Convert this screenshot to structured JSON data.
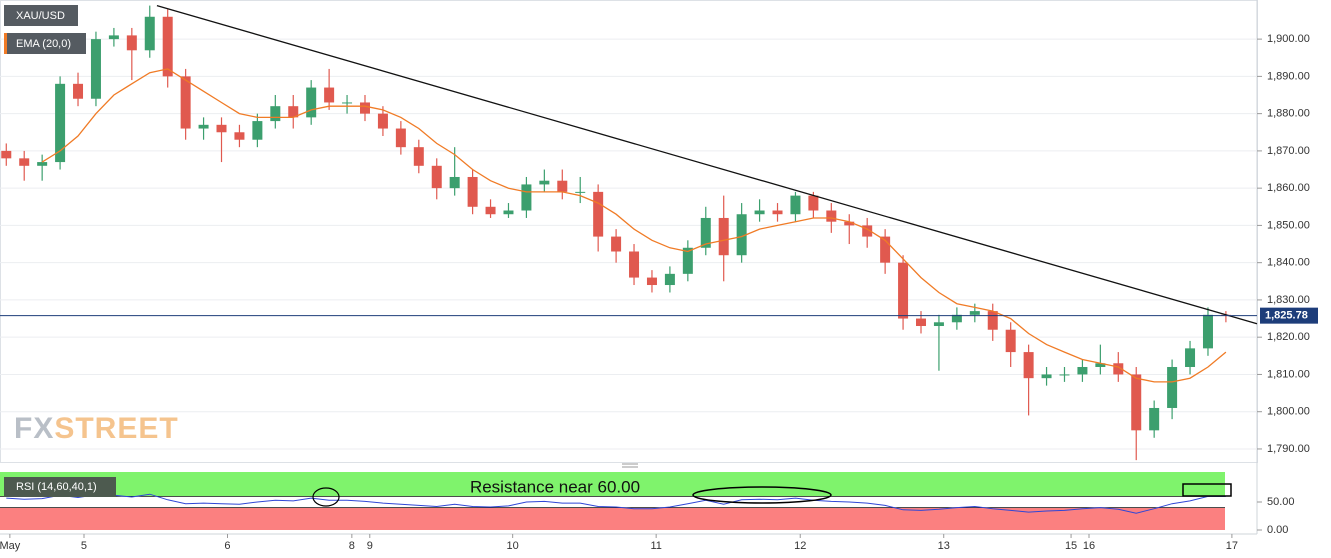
{
  "chart_data": [
    {
      "type": "candlestick",
      "name": "XAU/USD",
      "x": [
        -13,
        -10,
        -7,
        -4,
        -1,
        2,
        5,
        8,
        11,
        14,
        17,
        20,
        23,
        26,
        29,
        32,
        35,
        38,
        41,
        44,
        47,
        50,
        53,
        56,
        59,
        62,
        65,
        68,
        71,
        74,
        77,
        80,
        83,
        86,
        89,
        92,
        95,
        98,
        101,
        104,
        107,
        110,
        113,
        116,
        119,
        122,
        125,
        128,
        131,
        134,
        137,
        140,
        143,
        146,
        149,
        152,
        155,
        158,
        161,
        164,
        167,
        170,
        173,
        176,
        179,
        182,
        185,
        188,
        191
      ],
      "open": [
        1870,
        1868,
        1866,
        1867,
        1888,
        1884,
        1900,
        1901,
        1897,
        1906,
        1890,
        1876,
        1877,
        1875,
        1873,
        1878,
        1882,
        1879,
        1887,
        1883,
        1883,
        1880,
        1876,
        1871,
        1866,
        1860,
        1863,
        1855,
        1853,
        1854,
        1861,
        1862,
        1859,
        1859,
        1847,
        1843,
        1836,
        1834,
        1837,
        1844,
        1852,
        1842,
        1853,
        1854,
        1853,
        1858,
        1854,
        1851,
        1850,
        1847,
        1840,
        1825,
        1823,
        1824,
        1826,
        1827,
        1822,
        1816,
        1809,
        1810,
        1810,
        1812,
        1813,
        1810,
        1795,
        1801,
        1812,
        1817,
        1826
      ],
      "high": [
        1872,
        1870,
        1869,
        1890,
        1891,
        1902,
        1903,
        1903,
        1909,
        1908,
        1892,
        1879,
        1879,
        1877,
        1880,
        1885,
        1885,
        1889,
        1892,
        1885,
        1885,
        1882,
        1878,
        1873,
        1868,
        1871,
        1865,
        1857,
        1856,
        1863,
        1865,
        1865,
        1863,
        1861,
        1849,
        1845,
        1838,
        1839,
        1846,
        1855,
        1858,
        1856,
        1857,
        1856,
        1859,
        1859,
        1856,
        1853,
        1852,
        1849,
        1842,
        1827,
        1826,
        1828,
        1829,
        1829,
        1824,
        1818,
        1812,
        1812,
        1814,
        1818,
        1816,
        1812,
        1803,
        1814,
        1819,
        1828,
        1827
      ],
      "low": [
        1866,
        1862,
        1862,
        1865,
        1882,
        1882,
        1898,
        1889,
        1895,
        1887,
        1873,
        1873,
        1867,
        1871,
        1871,
        1876,
        1876,
        1877,
        1881,
        1880,
        1878,
        1874,
        1869,
        1864,
        1857,
        1858,
        1853,
        1852,
        1852,
        1852,
        1859,
        1857,
        1856,
        1843,
        1840,
        1834,
        1832,
        1832,
        1835,
        1842,
        1835,
        1840,
        1851,
        1851,
        1851,
        1852,
        1848,
        1845,
        1844,
        1837,
        1822,
        1821,
        1811,
        1822,
        1824,
        1819,
        1812,
        1799,
        1807,
        1808,
        1808,
        1810,
        1808,
        1787,
        1793,
        1798,
        1810,
        1815,
        1824
      ],
      "close": [
        1868,
        1866,
        1867,
        1888,
        1884,
        1900,
        1901,
        1897,
        1906,
        1890,
        1876,
        1877,
        1875,
        1873,
        1878,
        1882,
        1879,
        1887,
        1883,
        1883,
        1880,
        1876,
        1871,
        1866,
        1860,
        1863,
        1855,
        1853,
        1854,
        1861,
        1862,
        1859,
        1859,
        1847,
        1843,
        1836,
        1834,
        1837,
        1844,
        1852,
        1842,
        1853,
        1854,
        1853,
        1858,
        1854,
        1851,
        1850,
        1847,
        1840,
        1825,
        1823,
        1824,
        1826,
        1827,
        1822,
        1816,
        1809,
        1810,
        1810,
        1812,
        1813,
        1810,
        1795,
        1801,
        1812,
        1817,
        1826,
        1825.78
      ],
      "up_color": "#3c9f6e",
      "down_color": "#e0594f",
      "ema": {
        "name": "EMA (20,0)",
        "color": "#f07b26",
        "values": [
          null,
          null,
          1867,
          1870,
          1874,
          1880,
          1885,
          1888,
          1891,
          1892,
          1889,
          1886,
          1883,
          1880,
          1879,
          1879,
          1879,
          1881,
          1882,
          1882,
          1882,
          1881,
          1879,
          1876,
          1872,
          1869,
          1865,
          1862,
          1860,
          1859,
          1859,
          1859,
          1858,
          1856,
          1853,
          1849,
          1846,
          1844,
          1843,
          1845,
          1846,
          1847,
          1849,
          1850,
          1851,
          1852,
          1852,
          1851,
          1849,
          1846,
          1841,
          1836,
          1832,
          1829,
          1828,
          1827,
          1825,
          1821,
          1818,
          1816,
          1814,
          1813,
          1812,
          1809,
          1808,
          1808,
          1809,
          1812,
          1816
        ]
      },
      "trendline": {
        "x": [
          12.2,
          196.2
        ],
        "y": [
          1909,
          1823.6
        ],
        "color": "#111111"
      },
      "last_price": {
        "value": 1825.78,
        "label": "1,825.78",
        "color": "#1d3d7a"
      },
      "xlim": [
        -14.05,
        196.2
      ],
      "ylim": [
        1786.5,
        1910.5
      ],
      "yticks": [
        {
          "value": 1790,
          "label": "1,790.00"
        },
        {
          "value": 1800,
          "label": "1,800.00"
        },
        {
          "value": 1810,
          "label": "1,810.00"
        },
        {
          "value": 1820,
          "label": "1,820.00"
        },
        {
          "value": 1830,
          "label": "1,830.00"
        },
        {
          "value": 1840,
          "label": "1,840.00"
        },
        {
          "value": 1850,
          "label": "1,850.00"
        },
        {
          "value": 1860,
          "label": "1,860.00"
        },
        {
          "value": 1870,
          "label": "1,870.00"
        },
        {
          "value": 1880,
          "label": "1,880.00"
        },
        {
          "value": 1890,
          "label": "1,890.00"
        },
        {
          "value": 1900,
          "label": "1,900.00"
        }
      ],
      "grid": true,
      "watermark": [
        "FX",
        "STREET"
      ]
    },
    {
      "type": "line",
      "name": "RSI (14,60,40,1)",
      "color": "#2f46d6",
      "x": [
        -13,
        -10,
        -7,
        -4,
        -1,
        2,
        5,
        8,
        11,
        14,
        17,
        20,
        23,
        26,
        29,
        32,
        35,
        38,
        41,
        44,
        47,
        50,
        53,
        56,
        59,
        62,
        65,
        68,
        71,
        74,
        77,
        80,
        83,
        86,
        89,
        92,
        95,
        98,
        101,
        104,
        107,
        110,
        113,
        116,
        119,
        122,
        125,
        128,
        131,
        134,
        137,
        140,
        143,
        146,
        149,
        152,
        155,
        158,
        161,
        164,
        167,
        170,
        173,
        176,
        179,
        182,
        185,
        188,
        191
      ],
      "values": [
        57,
        55,
        56,
        62,
        58,
        63,
        62,
        59,
        64,
        54,
        47,
        48,
        47,
        46,
        50,
        53,
        52,
        57,
        53,
        53,
        51,
        48,
        46,
        44,
        42,
        46,
        42,
        41,
        43,
        50,
        51,
        48,
        48,
        42,
        41,
        38,
        38,
        41,
        47,
        53,
        46,
        54,
        55,
        54,
        57,
        53,
        51,
        50,
        48,
        44,
        36,
        35,
        37,
        40,
        42,
        38,
        35,
        32,
        34,
        35,
        38,
        40,
        37,
        30,
        38,
        47,
        52,
        60,
        60
      ],
      "upper_band": 60,
      "lower_band": 40,
      "upper_color": "#7ff36c",
      "lower_color": "#fb8080",
      "annotation": "Resistance near 60.00",
      "ylim": [
        0,
        100
      ],
      "yticks": [
        {
          "value": 0,
          "label": "0.00"
        },
        {
          "value": 50,
          "label": "50.00"
        }
      ],
      "xlim": [
        -14.05,
        196.2
      ],
      "xticks": [
        {
          "value": -12.4,
          "label": "May"
        },
        {
          "value": 0,
          "label": "5"
        },
        {
          "value": 24,
          "label": "6"
        },
        {
          "value": 44.8,
          "label": "8"
        },
        {
          "value": 47.8,
          "label": "9"
        },
        {
          "value": 71.7,
          "label": "10"
        },
        {
          "value": 95.7,
          "label": "11"
        },
        {
          "value": 119.8,
          "label": "12"
        },
        {
          "value": 143.8,
          "label": "13"
        },
        {
          "value": 165.1,
          "label": "15"
        },
        {
          "value": 168.1,
          "label": "16"
        },
        {
          "value": 192,
          "label": "17"
        }
      ]
    }
  ]
}
